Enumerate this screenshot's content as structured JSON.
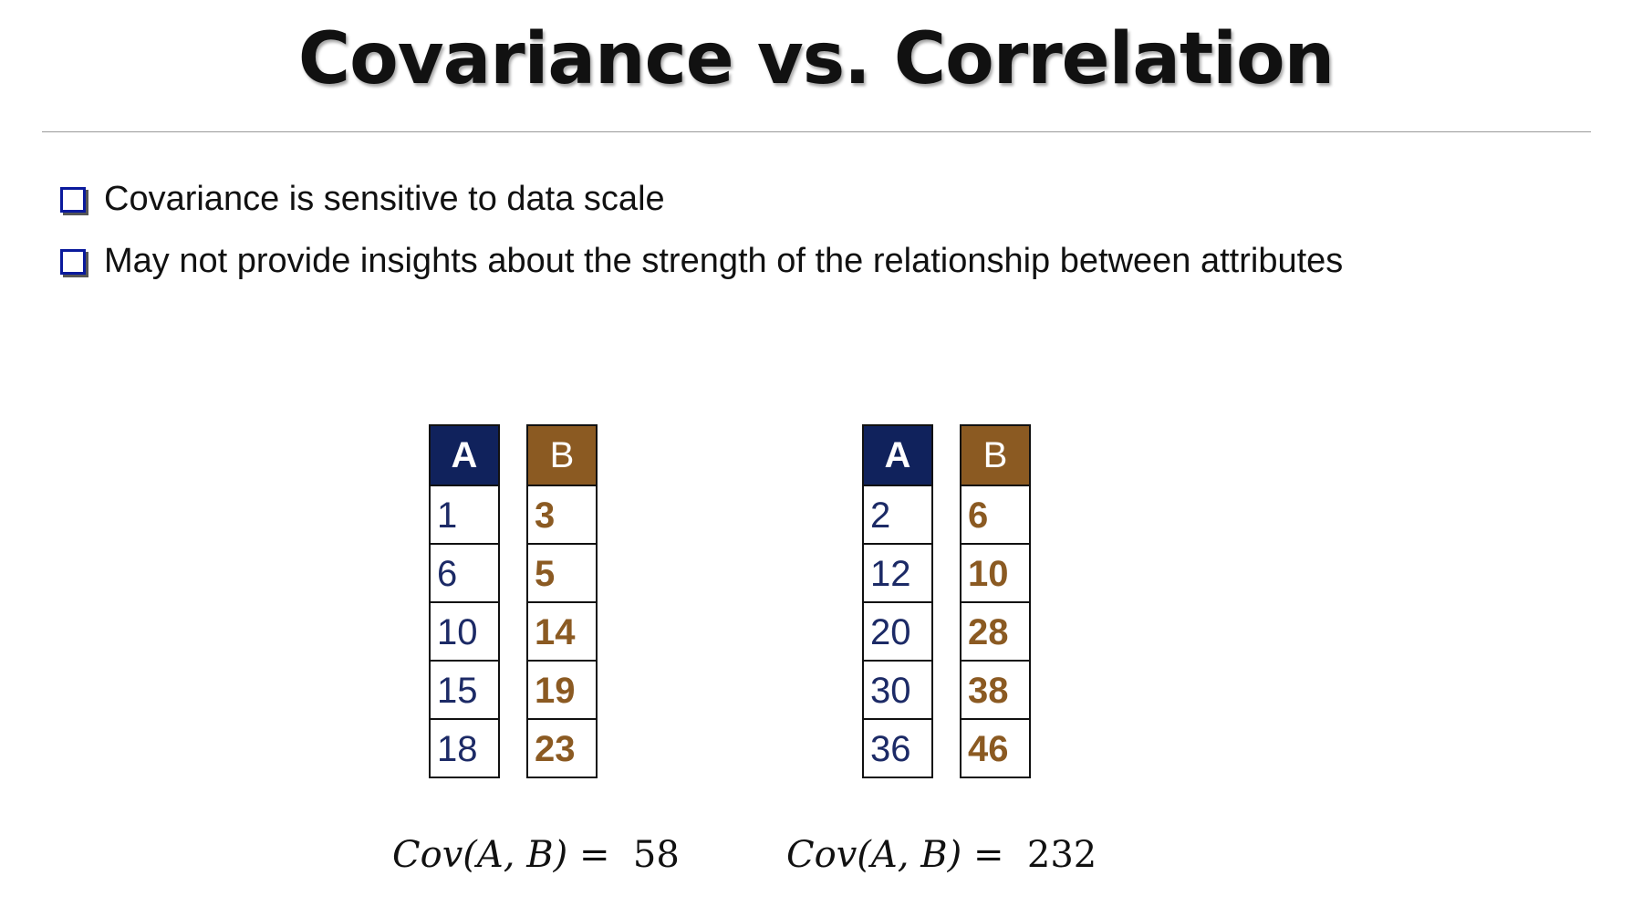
{
  "title": "Covariance vs. Correlation",
  "bullets": [
    "Covariance is sensitive to data scale",
    "May not provide insights about the strength of the relationship between attributes"
  ],
  "colors": {
    "header_a": "#10225c",
    "header_b": "#8b5a22",
    "bullet_box": "#0a1a9c"
  },
  "tables": [
    {
      "a_header": "A",
      "b_header": "B",
      "a_values": [
        "1",
        "6",
        "10",
        "15",
        "18"
      ],
      "b_values": [
        "3",
        "5",
        "14",
        "19",
        "23"
      ],
      "cov_label": "Cov(A, B)",
      "cov_eq": "=",
      "cov_value": "58"
    },
    {
      "a_header": "A",
      "b_header": "B",
      "a_values": [
        "2",
        "12",
        "20",
        "30",
        "36"
      ],
      "b_values": [
        "6",
        "10",
        "28",
        "38",
        "46"
      ],
      "cov_label": "Cov(A, B)",
      "cov_eq": "=",
      "cov_value": "232"
    }
  ]
}
